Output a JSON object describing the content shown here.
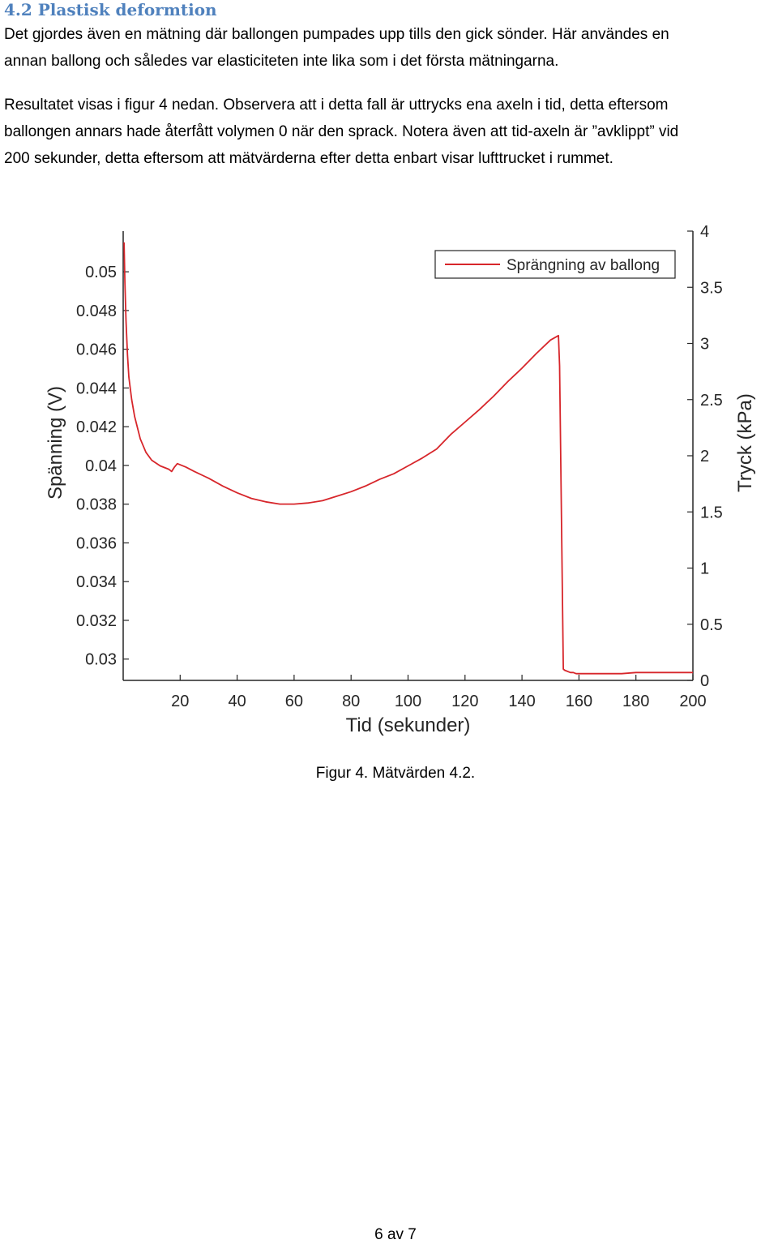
{
  "section": {
    "heading": "4.2 Plastisk deformtion",
    "paragraph1": [
      "Det gjordes även en mätning där ballongen pumpades upp tills den gick sönder. Här användes en",
      "annan ballong och således var elasticiteten inte lika som i det första mätningarna."
    ],
    "paragraph2": [
      "Resultatet visas i figur 4 nedan. Observera att i detta fall är uttrycks ena axeln i tid, detta eftersom",
      "ballongen annars hade återfått volymen 0 när den sprack. Notera även att tid-axeln är ”avklippt” vid",
      "200 sekunder, detta eftersom att mätvärderna efter detta enbart visar lufttrucket i rummet."
    ]
  },
  "figure": {
    "caption": "Figur 4. Mätvärden 4.2.",
    "page_number": "6 av 7"
  },
  "chart_data": {
    "type": "line",
    "title": "",
    "xlabel": "Tid (sekunder)",
    "ylabel": "Spänning (V)",
    "y2label": "Tryck (kPa)",
    "xlim": [
      0,
      200
    ],
    "ylim": [
      0.0289,
      0.0521
    ],
    "y2lim": [
      0,
      4
    ],
    "xticks": [
      "20",
      "40",
      "60",
      "80",
      "100",
      "120",
      "140",
      "160",
      "180",
      "200"
    ],
    "yticks": [
      "0.03",
      "0.032",
      "0.034",
      "0.036",
      "0.038",
      "0.04",
      "0.042",
      "0.044",
      "0.046",
      "0.048",
      "0.05"
    ],
    "y2ticks": [
      "0",
      "0.5",
      "1",
      "1.5",
      "2",
      "2.5",
      "3",
      "3.5",
      "4"
    ],
    "legend_position": "top-right",
    "grid": false,
    "series": [
      {
        "name": "Sprängning av ballong",
        "color": "#d7262b",
        "axis": "right",
        "x": [
          0.3,
          0.6,
          1,
          1.5,
          2,
          3,
          4,
          6,
          8,
          10,
          13,
          16,
          17,
          18,
          19,
          22,
          25,
          30,
          35,
          40,
          45,
          50,
          55,
          60,
          65,
          70,
          75,
          80,
          85,
          90,
          95,
          100,
          105,
          110,
          115,
          120,
          125,
          130,
          135,
          140,
          145,
          150,
          152.8,
          153.2,
          154.5,
          155,
          157,
          158,
          159,
          160,
          165,
          170,
          175,
          180,
          185,
          190,
          195,
          200
        ],
        "y": [
          3.9,
          3.55,
          3.2,
          2.9,
          2.7,
          2.5,
          2.35,
          2.15,
          2.03,
          1.96,
          1.91,
          1.88,
          1.86,
          1.9,
          1.93,
          1.9,
          1.86,
          1.8,
          1.73,
          1.67,
          1.62,
          1.59,
          1.57,
          1.57,
          1.58,
          1.6,
          1.64,
          1.68,
          1.73,
          1.79,
          1.84,
          1.91,
          1.98,
          2.06,
          2.19,
          2.3,
          2.41,
          2.53,
          2.66,
          2.78,
          2.91,
          3.03,
          3.07,
          2.8,
          0.1,
          0.09,
          0.07,
          0.07,
          0.06,
          0.06,
          0.06,
          0.06,
          0.06,
          0.07,
          0.07,
          0.07,
          0.07,
          0.07
        ]
      }
    ]
  }
}
